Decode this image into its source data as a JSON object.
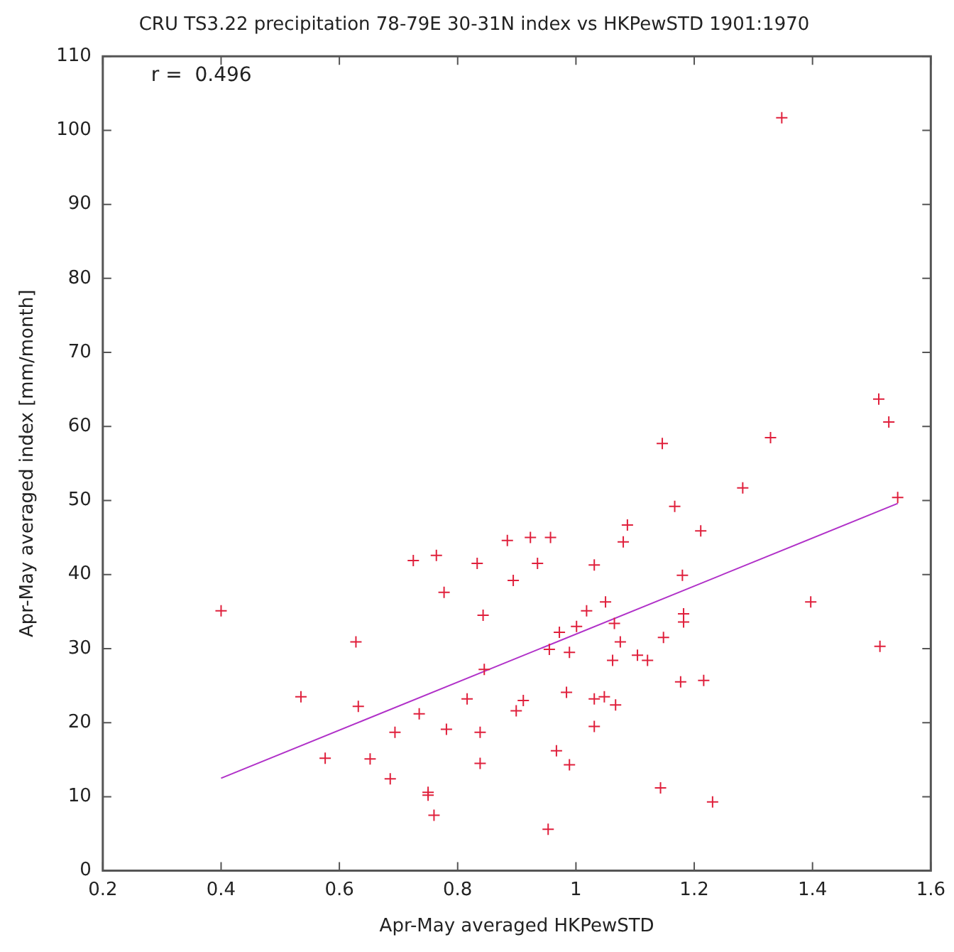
{
  "chart_data": {
    "type": "scatter",
    "title": "CRU TS3.22 precipitation 78-79E 30-31N index vs HKPewSTD 1901:1970",
    "xlabel": "Apr-May averaged HKPewSTD",
    "ylabel": "Apr-May averaged index [mm/month]",
    "annotations": [
      "r =  0.496"
    ],
    "xlim": [
      0.2,
      1.6
    ],
    "xticks": [
      0.2,
      0.4,
      0.6,
      0.8,
      1,
      1.2,
      1.4,
      1.6
    ],
    "ylim": [
      0,
      110
    ],
    "yticks": [
      0,
      10,
      20,
      30,
      40,
      50,
      60,
      70,
      80,
      90,
      100,
      110
    ],
    "grid": false,
    "legend": false,
    "series": [
      {
        "marker": "cross",
        "color": "#e0203c",
        "x": [
          0.4,
          0.535,
          0.576,
          0.628,
          0.632,
          0.652,
          0.686,
          0.694,
          0.725,
          0.735,
          0.75,
          0.75,
          0.76,
          0.764,
          0.777,
          0.781,
          0.816,
          0.833,
          0.838,
          0.838,
          0.843,
          0.845,
          0.884,
          0.894,
          0.899,
          0.911,
          0.923,
          0.935,
          0.953,
          0.955,
          0.957,
          0.967,
          0.972,
          0.984,
          0.989,
          0.989,
          1.001,
          1.018,
          1.031,
          1.031,
          1.031,
          1.048,
          1.05,
          1.062,
          1.065,
          1.067,
          1.075,
          1.08,
          1.087,
          1.104,
          1.121,
          1.143,
          1.146,
          1.148,
          1.167,
          1.177,
          1.18,
          1.182,
          1.182,
          1.211,
          1.216,
          1.231,
          1.282,
          1.329,
          1.348,
          1.397,
          1.512,
          1.514,
          1.529,
          1.544
        ],
        "values": [
          35.1,
          23.5,
          15.2,
          30.9,
          22.2,
          15.1,
          12.4,
          18.7,
          41.9,
          21.2,
          10.6,
          10.2,
          7.5,
          42.6,
          37.6,
          19.1,
          23.2,
          41.5,
          18.7,
          14.5,
          34.5,
          27.2,
          44.6,
          39.2,
          21.6,
          23,
          45,
          41.5,
          5.6,
          29.9,
          45,
          16.2,
          32.2,
          24.1,
          29.5,
          14.3,
          33,
          35.1,
          41.3,
          23.2,
          19.5,
          23.5,
          36.3,
          28.4,
          33.4,
          22.4,
          30.9,
          44.4,
          46.7,
          29.1,
          28.4,
          11.2,
          57.7,
          31.5,
          49.2,
          25.5,
          39.9,
          34.7,
          33.6,
          45.9,
          25.7,
          9.3,
          51.7,
          58.5,
          101.7,
          36.3,
          63.7,
          30.3,
          60.6,
          50.4
        ]
      },
      {
        "type": "line",
        "marker": "none",
        "color": "#b030c8",
        "line_style": "solid",
        "x": [
          0.4,
          1.544
        ],
        "values": [
          12.5,
          49.6
        ]
      }
    ]
  }
}
